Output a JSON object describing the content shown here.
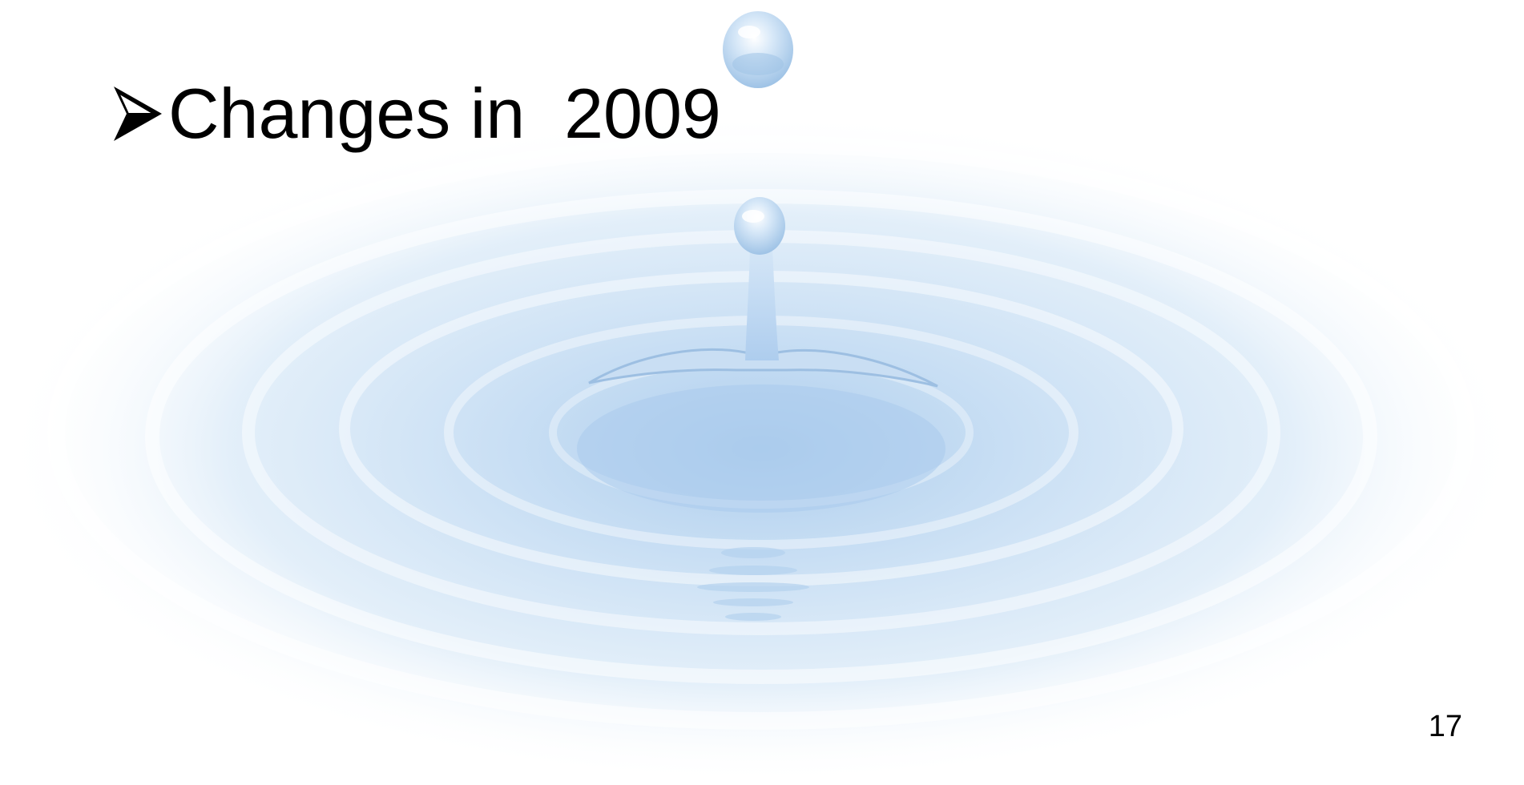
{
  "slide": {
    "title": "Changes in  2009",
    "page_number": "17",
    "background_image": "water-drop-ripple",
    "bullet_icon": "arrowhead-bullet-icon"
  },
  "colors": {
    "text": "#000000",
    "ripple_light": "#eaf3fb",
    "ripple_mid": "#cfe2f5",
    "ripple_deep": "#b7d4ef"
  }
}
